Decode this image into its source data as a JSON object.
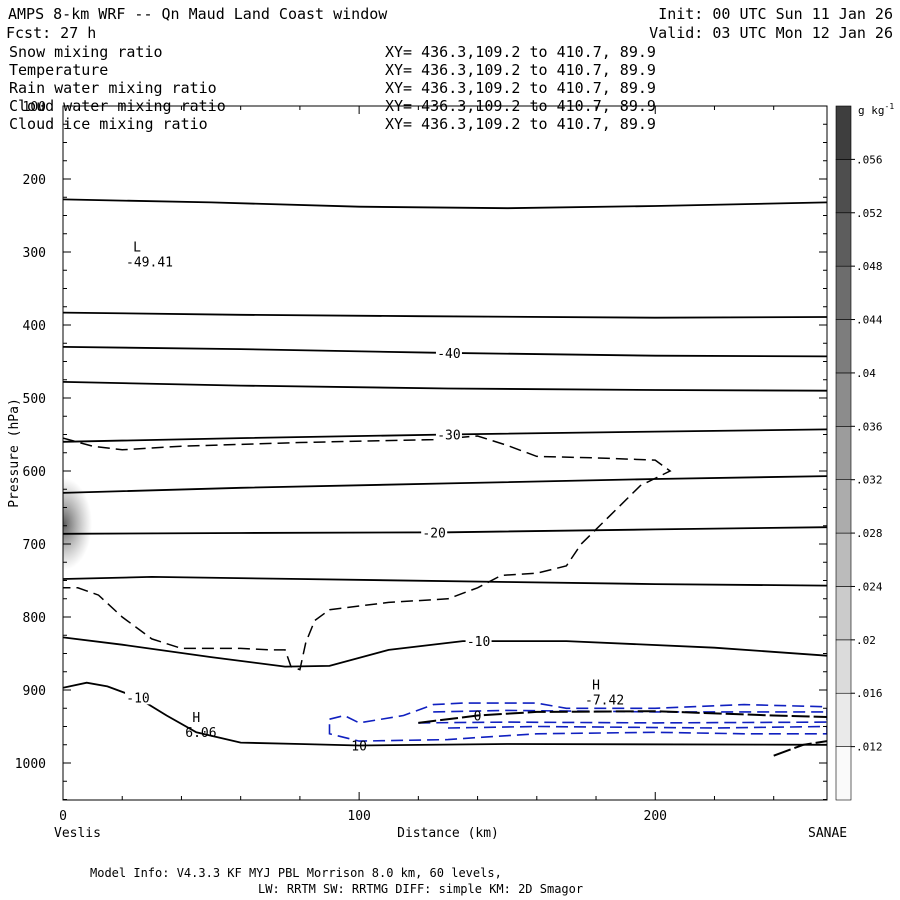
{
  "header": {
    "title": "AMPS 8-km WRF -- Qn Maud Land Coast window",
    "init": "Init: 00 UTC Sun 11 Jan 26",
    "fcst": "Fcst:    27 h",
    "valid": "Valid: 03 UTC Mon 12 Jan 26"
  },
  "fields": [
    {
      "name": "Snow mixing ratio",
      "xy": "XY= 436.3,109.2 to 410.7, 89.9",
      "color": "#000000"
    },
    {
      "name": "Temperature",
      "xy": "XY= 436.3,109.2 to 410.7, 89.9",
      "color": "#000000"
    },
    {
      "name": "Rain water mixing ratio",
      "xy": "XY= 436.3,109.2 to 410.7, 89.9",
      "color": "#e01010"
    },
    {
      "name": "Cloud water mixing ratio",
      "xy": "XY= 436.3,109.2 to 410.7, 89.9",
      "color": "#1020c0"
    },
    {
      "name": "Cloud ice mixing ratio",
      "xy": "XY= 436.3,109.2 to 410.7, 89.9",
      "color": "#000000"
    }
  ],
  "chart_data": {
    "type": "cross-section contour",
    "xlabel": "Distance (km)",
    "ylabel": "Pressure (hPa)",
    "xlim": [
      0,
      258
    ],
    "ylim": [
      1050,
      100
    ],
    "x_ticks": [
      0,
      100,
      200
    ],
    "y_ticks": [
      100,
      200,
      300,
      400,
      500,
      600,
      700,
      800,
      900,
      1000
    ],
    "left_endpoint": "Veslis",
    "right_endpoint": "SANAE",
    "colorbar": {
      "unit": "g kg-1",
      "levels": [
        ".012",
        ".016",
        ".02",
        ".024",
        ".028",
        ".032",
        ".036",
        ".04",
        ".044",
        ".048",
        ".052",
        ".056"
      ]
    },
    "temperature_contours": [
      {
        "pts": [
          [
            0,
            228
          ],
          [
            50,
            232
          ],
          [
            100,
            238
          ],
          [
            150,
            240
          ],
          [
            200,
            237
          ],
          [
            258,
            232
          ]
        ]
      },
      {
        "pts": [
          [
            0,
            383
          ],
          [
            60,
            386
          ],
          [
            120,
            388
          ],
          [
            200,
            390
          ],
          [
            258,
            389
          ]
        ],
        "label": null
      },
      {
        "pts": [
          [
            0,
            430
          ],
          [
            60,
            433
          ],
          [
            125,
            438
          ],
          [
            200,
            442
          ],
          [
            258,
            443
          ]
        ],
        "label": "-40",
        "label_x": 130
      },
      {
        "pts": [
          [
            0,
            478
          ],
          [
            60,
            483
          ],
          [
            130,
            487
          ],
          [
            200,
            489
          ],
          [
            258,
            490
          ]
        ]
      },
      {
        "pts": [
          [
            0,
            560
          ],
          [
            60,
            555
          ],
          [
            130,
            550
          ],
          [
            200,
            546
          ],
          [
            258,
            543
          ]
        ],
        "label": "-30",
        "label_x": 130
      },
      {
        "pts": [
          [
            0,
            630
          ],
          [
            60,
            623
          ],
          [
            130,
            617
          ],
          [
            200,
            611
          ],
          [
            258,
            607
          ]
        ]
      },
      {
        "pts": [
          [
            0,
            686
          ],
          [
            60,
            685
          ],
          [
            130,
            684
          ],
          [
            200,
            680
          ],
          [
            258,
            677
          ]
        ],
        "label": "-20",
        "label_x": 125
      },
      {
        "pts": [
          [
            0,
            748
          ],
          [
            30,
            745
          ],
          [
            80,
            748
          ],
          [
            150,
            752
          ],
          [
            200,
            755
          ],
          [
            258,
            757
          ]
        ]
      },
      {
        "pts": [
          [
            0,
            828
          ],
          [
            20,
            838
          ],
          [
            50,
            855
          ],
          [
            75,
            868
          ],
          [
            90,
            867
          ],
          [
            110,
            845
          ],
          [
            135,
            833
          ],
          [
            170,
            833
          ],
          [
            220,
            842
          ],
          [
            258,
            853
          ]
        ],
        "label": "-10",
        "label_x": 140
      },
      {
        "pts": [
          [
            0,
            897
          ],
          [
            8,
            890
          ],
          [
            15,
            895
          ],
          [
            25,
            910
          ],
          [
            35,
            935
          ],
          [
            45,
            958
          ],
          [
            60,
            972
          ],
          [
            80,
            974
          ],
          [
            100,
            976
          ],
          [
            150,
            974
          ],
          [
            258,
            975
          ]
        ],
        "label": "-10",
        "label_x": 25
      }
    ],
    "temperature_extrema": [
      {
        "type": "L",
        "value": "-49.41",
        "x": 25,
        "p": 310
      },
      {
        "type": "H",
        "value": "6.06",
        "x": 45,
        "p": 955
      },
      {
        "type": "H",
        "value": "-7.42",
        "x": 180,
        "p": 910
      }
    ],
    "contour_label_inline": [
      {
        "text": "0",
        "x": 140,
        "p": 935
      },
      {
        "text": "10",
        "x": 100,
        "p": 976
      }
    ],
    "snow_contours": [
      {
        "pts": [
          [
            0,
            555
          ],
          [
            10,
            566
          ],
          [
            20,
            571
          ],
          [
            40,
            566
          ],
          [
            80,
            561
          ],
          [
            125,
            557
          ],
          [
            140,
            552
          ],
          [
            150,
            565
          ],
          [
            160,
            580
          ],
          [
            180,
            582
          ],
          [
            200,
            585
          ],
          [
            205,
            600
          ],
          [
            195,
            620
          ],
          [
            185,
            660
          ],
          [
            175,
            700
          ],
          [
            170,
            730
          ],
          [
            160,
            740
          ],
          [
            148,
            743
          ],
          [
            140,
            760
          ],
          [
            130,
            775
          ],
          [
            110,
            780
          ],
          [
            90,
            790
          ],
          [
            85,
            805
          ],
          [
            82,
            835
          ],
          [
            80,
            872
          ],
          [
            77,
            868
          ],
          [
            75,
            845
          ],
          [
            70,
            845
          ],
          [
            60,
            843
          ],
          [
            40,
            843
          ],
          [
            30,
            830
          ],
          [
            20,
            800
          ],
          [
            12,
            770
          ],
          [
            5,
            760
          ],
          [
            0,
            760
          ]
        ]
      }
    ],
    "cloud_water_contours": [
      {
        "pts": [
          [
            90,
            940
          ],
          [
            95,
            935
          ],
          [
            100,
            945
          ],
          [
            115,
            935
          ],
          [
            125,
            920
          ],
          [
            135,
            918
          ],
          [
            160,
            918
          ],
          [
            170,
            925
          ],
          [
            200,
            925
          ],
          [
            230,
            920
          ],
          [
            258,
            923
          ],
          [
            258,
            960
          ],
          [
            230,
            960
          ],
          [
            200,
            958
          ],
          [
            160,
            960
          ],
          [
            140,
            965
          ],
          [
            130,
            968
          ],
          [
            100,
            970
          ],
          [
            90,
            960
          ],
          [
            90,
            940
          ]
        ]
      },
      {
        "pts": [
          [
            125,
            930
          ],
          [
            150,
            928
          ],
          [
            200,
            930
          ],
          [
            258,
            930
          ]
        ]
      },
      {
        "pts": [
          [
            120,
            945
          ],
          [
            150,
            944
          ],
          [
            200,
            945
          ],
          [
            258,
            944
          ]
        ]
      },
      {
        "pts": [
          [
            130,
            952
          ],
          [
            160,
            950
          ],
          [
            220,
            952
          ],
          [
            258,
            950
          ]
        ]
      }
    ],
    "cloud_ice_contours": [
      {
        "pts": [
          [
            120,
            945
          ],
          [
            140,
            935
          ],
          [
            160,
            930
          ],
          [
            200,
            929
          ],
          [
            240,
            935
          ],
          [
            258,
            937
          ]
        ]
      },
      {
        "pts": [
          [
            240,
            990
          ],
          [
            250,
            975
          ],
          [
            258,
            970
          ]
        ]
      }
    ]
  },
  "footer": {
    "line1": "Model Info: V4.3.3   KF      MYJ PBL  Morrison            8.0 km,  60 levels,",
    "line2": "LW: RRTM SW: RRTMG   DIFF: simple KM: 2D Smagor"
  }
}
